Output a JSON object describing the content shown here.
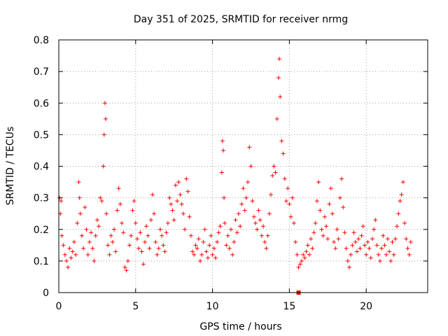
{
  "chart_data": {
    "type": "scatter",
    "title": "Day 351 of 2025, SRMTID for receiver nrmg",
    "xlabel": "GPS time / hours",
    "ylabel": "SRMTID / TECUs",
    "xlim": [
      0,
      24
    ],
    "ylim": [
      0,
      0.8
    ],
    "xticks": [
      0,
      5,
      10,
      15,
      20
    ],
    "yticks": [
      0,
      0.1,
      0.2,
      0.3,
      0.4,
      0.5,
      0.6,
      0.7,
      0.8
    ],
    "xtick_labels": [
      "0",
      "5",
      "10",
      "15",
      "20"
    ],
    "ytick_labels": [
      "0",
      "0.1",
      "0.2",
      "0.3",
      "0.4",
      "0.5",
      "0.6",
      "0.7",
      "0.8"
    ],
    "grid": true,
    "marker": "+",
    "color": "#ff0000",
    "series": [
      {
        "name": "SRMTID",
        "points": [
          [
            0.05,
            0.3
          ],
          [
            0.1,
            0.25
          ],
          [
            0.15,
            0.29
          ],
          [
            0.2,
            0.18
          ],
          [
            0.3,
            0.15
          ],
          [
            0.4,
            0.12
          ],
          [
            0.5,
            0.1
          ],
          [
            0.6,
            0.08
          ],
          [
            0.7,
            0.14
          ],
          [
            0.8,
            0.11
          ],
          [
            0.9,
            0.13
          ],
          [
            1.0,
            0.16
          ],
          [
            1.1,
            0.12
          ],
          [
            1.2,
            0.22
          ],
          [
            1.3,
            0.35
          ],
          [
            1.35,
            0.3
          ],
          [
            1.4,
            0.25
          ],
          [
            1.5,
            0.18
          ],
          [
            1.6,
            0.14
          ],
          [
            1.7,
            0.27
          ],
          [
            1.8,
            0.2
          ],
          [
            1.9,
            0.12
          ],
          [
            2.0,
            0.16
          ],
          [
            2.1,
            0.19
          ],
          [
            2.2,
            0.14
          ],
          [
            2.3,
            0.1
          ],
          [
            2.4,
            0.18
          ],
          [
            2.5,
            0.23
          ],
          [
            2.6,
            0.21
          ],
          [
            2.7,
            0.3
          ],
          [
            2.8,
            0.29
          ],
          [
            2.9,
            0.4
          ],
          [
            2.95,
            0.5
          ],
          [
            3.0,
            0.6
          ],
          [
            3.05,
            0.55
          ],
          [
            3.1,
            0.25
          ],
          [
            3.2,
            0.15
          ],
          [
            3.3,
            0.12
          ],
          [
            3.4,
            0.18
          ],
          [
            3.5,
            0.16
          ],
          [
            3.6,
            0.2
          ],
          [
            3.7,
            0.13
          ],
          [
            3.8,
            0.26
          ],
          [
            3.9,
            0.33
          ],
          [
            4.0,
            0.28
          ],
          [
            4.1,
            0.22
          ],
          [
            4.2,
            0.19
          ],
          [
            4.3,
            0.08
          ],
          [
            4.4,
            0.07
          ],
          [
            4.5,
            0.1
          ],
          [
            4.6,
            0.15
          ],
          [
            4.7,
            0.18
          ],
          [
            4.8,
            0.26
          ],
          [
            4.9,
            0.29
          ],
          [
            5.0,
            0.22
          ],
          [
            5.1,
            0.17
          ],
          [
            5.2,
            0.14
          ],
          [
            5.3,
            0.19
          ],
          [
            5.4,
            0.13
          ],
          [
            5.5,
            0.09
          ],
          [
            5.6,
            0.16
          ],
          [
            5.7,
            0.21
          ],
          [
            5.8,
            0.18
          ],
          [
            5.9,
            0.14
          ],
          [
            6.0,
            0.23
          ],
          [
            6.1,
            0.31
          ],
          [
            6.2,
            0.25
          ],
          [
            6.3,
            0.16
          ],
          [
            6.4,
            0.12
          ],
          [
            6.5,
            0.14
          ],
          [
            6.6,
            0.2
          ],
          [
            6.7,
            0.18
          ],
          [
            6.8,
            0.15
          ],
          [
            6.9,
            0.13
          ],
          [
            7.0,
            0.19
          ],
          [
            7.1,
            0.22
          ],
          [
            7.2,
            0.3
          ],
          [
            7.3,
            0.28
          ],
          [
            7.4,
            0.26
          ],
          [
            7.5,
            0.23
          ],
          [
            7.6,
            0.34
          ],
          [
            7.7,
            0.29
          ],
          [
            7.8,
            0.35
          ],
          [
            7.9,
            0.31
          ],
          [
            8.0,
            0.28
          ],
          [
            8.1,
            0.25
          ],
          [
            8.2,
            0.2
          ],
          [
            8.3,
            0.36
          ],
          [
            8.4,
            0.32
          ],
          [
            8.5,
            0.24
          ],
          [
            8.6,
            0.18
          ],
          [
            8.7,
            0.13
          ],
          [
            8.8,
            0.12
          ],
          [
            8.9,
            0.15
          ],
          [
            9.0,
            0.14
          ],
          [
            9.1,
            0.17
          ],
          [
            9.2,
            0.1
          ],
          [
            9.3,
            0.12
          ],
          [
            9.4,
            0.16
          ],
          [
            9.5,
            0.2
          ],
          [
            9.6,
            0.13
          ],
          [
            9.7,
            0.11
          ],
          [
            9.8,
            0.15
          ],
          [
            9.9,
            0.18
          ],
          [
            10.0,
            0.12
          ],
          [
            10.1,
            0.14
          ],
          [
            10.2,
            0.11
          ],
          [
            10.3,
            0.16
          ],
          [
            10.4,
            0.19
          ],
          [
            10.5,
            0.21
          ],
          [
            10.6,
            0.38
          ],
          [
            10.65,
            0.48
          ],
          [
            10.7,
            0.45
          ],
          [
            10.75,
            0.3
          ],
          [
            10.8,
            0.22
          ],
          [
            10.9,
            0.15
          ],
          [
            11.0,
            0.18
          ],
          [
            11.1,
            0.14
          ],
          [
            11.2,
            0.2
          ],
          [
            11.3,
            0.12
          ],
          [
            11.4,
            0.16
          ],
          [
            11.5,
            0.23
          ],
          [
            11.6,
            0.19
          ],
          [
            11.7,
            0.25
          ],
          [
            11.8,
            0.21
          ],
          [
            11.9,
            0.28
          ],
          [
            12.0,
            0.33
          ],
          [
            12.1,
            0.26
          ],
          [
            12.2,
            0.3
          ],
          [
            12.3,
            0.35
          ],
          [
            12.4,
            0.46
          ],
          [
            12.5,
            0.4
          ],
          [
            12.6,
            0.29
          ],
          [
            12.7,
            0.24
          ],
          [
            12.8,
            0.22
          ],
          [
            12.9,
            0.2
          ],
          [
            13.0,
            0.26
          ],
          [
            13.1,
            0.23
          ],
          [
            13.2,
            0.18
          ],
          [
            13.3,
            0.21
          ],
          [
            13.4,
            0.16
          ],
          [
            13.5,
            0.14
          ],
          [
            13.6,
            0.18
          ],
          [
            13.7,
            0.25
          ],
          [
            13.8,
            0.31
          ],
          [
            13.9,
            0.37
          ],
          [
            14.0,
            0.4
          ],
          [
            14.1,
            0.38
          ],
          [
            14.2,
            0.55
          ],
          [
            14.3,
            0.68
          ],
          [
            14.35,
            0.74
          ],
          [
            14.4,
            0.62
          ],
          [
            14.5,
            0.48
          ],
          [
            14.6,
            0.44
          ],
          [
            14.7,
            0.36
          ],
          [
            14.8,
            0.29
          ],
          [
            14.9,
            0.33
          ],
          [
            15.0,
            0.28
          ],
          [
            15.1,
            0.24
          ],
          [
            15.2,
            0.3
          ],
          [
            15.3,
            0.22
          ],
          [
            15.4,
            0.16
          ],
          [
            15.5,
            0.12
          ],
          [
            15.6,
            0.08
          ],
          [
            15.7,
            0.09
          ],
          [
            15.8,
            0.1
          ],
          [
            15.9,
            0.12
          ],
          [
            16.0,
            0.11
          ],
          [
            16.1,
            0.13
          ],
          [
            16.2,
            0.15
          ],
          [
            16.3,
            0.12
          ],
          [
            16.4,
            0.17
          ],
          [
            16.5,
            0.14
          ],
          [
            16.6,
            0.19
          ],
          [
            16.7,
            0.22
          ],
          [
            16.8,
            0.29
          ],
          [
            16.9,
            0.35
          ],
          [
            17.0,
            0.26
          ],
          [
            17.1,
            0.2
          ],
          [
            17.2,
            0.18
          ],
          [
            17.3,
            0.24
          ],
          [
            17.4,
            0.21
          ],
          [
            17.5,
            0.17
          ],
          [
            17.6,
            0.28
          ],
          [
            17.7,
            0.33
          ],
          [
            17.8,
            0.25
          ],
          [
            17.9,
            0.16
          ],
          [
            18.0,
            0.14
          ],
          [
            18.1,
            0.2
          ],
          [
            18.2,
            0.17
          ],
          [
            18.3,
            0.3
          ],
          [
            18.4,
            0.36
          ],
          [
            18.5,
            0.27
          ],
          [
            18.6,
            0.19
          ],
          [
            18.7,
            0.14
          ],
          [
            18.8,
            0.1
          ],
          [
            18.9,
            0.08
          ],
          [
            19.0,
            0.12
          ],
          [
            19.1,
            0.15
          ],
          [
            19.2,
            0.19
          ],
          [
            19.3,
            0.16
          ],
          [
            19.4,
            0.13
          ],
          [
            19.5,
            0.17
          ],
          [
            19.6,
            0.14
          ],
          [
            19.7,
            0.18
          ],
          [
            19.8,
            0.21
          ],
          [
            19.9,
            0.15
          ],
          [
            20.0,
            0.12
          ],
          [
            20.1,
            0.16
          ],
          [
            20.2,
            0.14
          ],
          [
            20.3,
            0.11
          ],
          [
            20.4,
            0.17
          ],
          [
            20.5,
            0.2
          ],
          [
            20.6,
            0.23
          ],
          [
            20.7,
            0.15
          ],
          [
            20.8,
            0.12
          ],
          [
            20.9,
            0.1
          ],
          [
            21.0,
            0.14
          ],
          [
            21.1,
            0.18
          ],
          [
            21.2,
            0.15
          ],
          [
            21.3,
            0.12
          ],
          [
            21.4,
            0.17
          ],
          [
            21.5,
            0.13
          ],
          [
            21.6,
            0.1
          ],
          [
            21.7,
            0.16
          ],
          [
            21.8,
            0.12
          ],
          [
            21.9,
            0.17
          ],
          [
            22.0,
            0.21
          ],
          [
            22.1,
            0.25
          ],
          [
            22.2,
            0.29
          ],
          [
            22.3,
            0.31
          ],
          [
            22.4,
            0.35
          ],
          [
            22.5,
            0.22
          ],
          [
            22.6,
            0.17
          ],
          [
            22.7,
            0.14
          ],
          [
            22.8,
            0.12
          ],
          [
            22.9,
            0.16
          ]
        ]
      }
    ],
    "annotations": [
      {
        "type": "square-marker",
        "x": 15.6,
        "y": 0.0
      }
    ]
  }
}
